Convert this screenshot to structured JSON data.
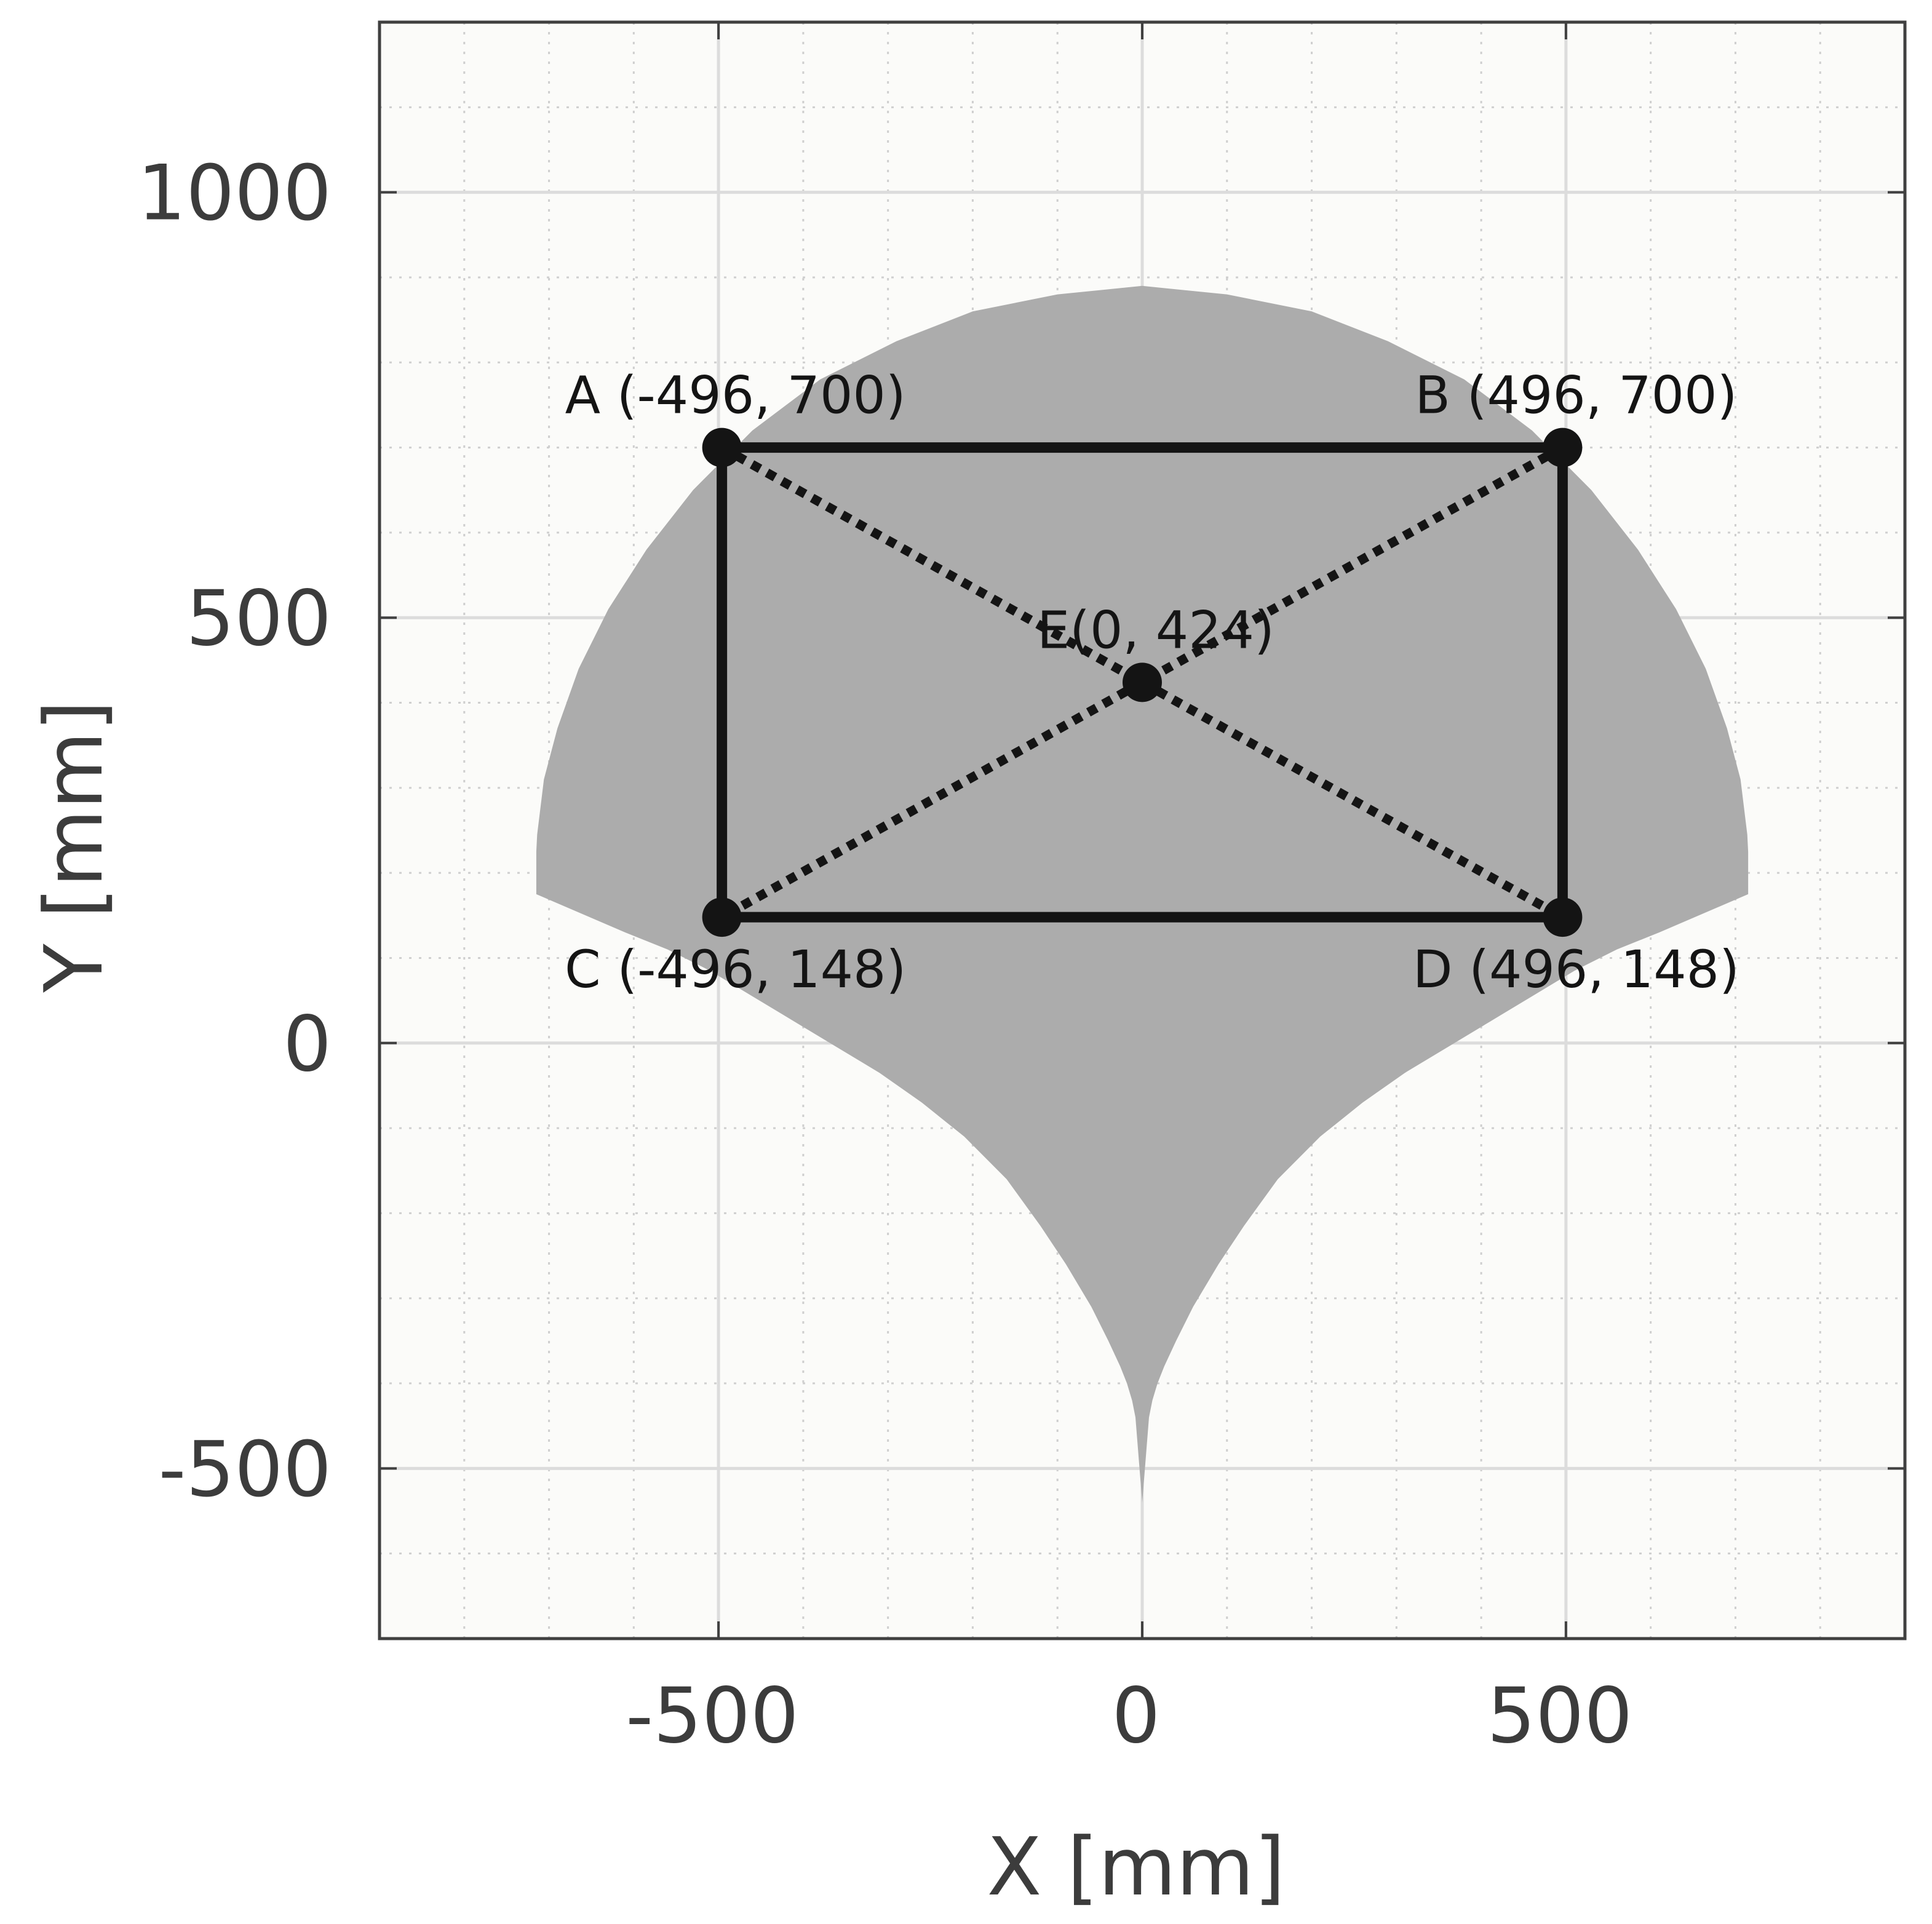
{
  "chart_data": {
    "type": "scatter",
    "title": "",
    "xlabel": "X [mm]",
    "ylabel": "Y [mm]",
    "xlim": [
      -900,
      900
    ],
    "ylim": [
      -700,
      1200
    ],
    "x_ticks": [
      -500,
      0,
      500
    ],
    "y_ticks": [
      -500,
      0,
      500,
      1000
    ],
    "x_tick_labels": [
      "-500",
      "0",
      "500"
    ],
    "y_tick_labels": [
      "-500",
      "0",
      "500",
      "1000"
    ],
    "grid": true,
    "minor_grid": true,
    "legend": "none",
    "colors": {
      "workspace": "#acacac",
      "rectangle": "#141414",
      "major_grid": "#dcdcdc",
      "minor_grid": "#cfcfcf",
      "plot_background": "#fbfbf9",
      "axes": "#404040"
    },
    "workspace_boundary": [
      [
        0,
        -540
      ],
      [
        8,
        -440
      ],
      [
        12,
        -420
      ],
      [
        18,
        -400
      ],
      [
        26,
        -380
      ],
      [
        40,
        -350
      ],
      [
        60,
        -310
      ],
      [
        90,
        -260
      ],
      [
        120,
        -215
      ],
      [
        160,
        -160
      ],
      [
        210,
        -110
      ],
      [
        260,
        -70
      ],
      [
        310,
        -35
      ],
      [
        360,
        -5
      ],
      [
        410,
        25
      ],
      [
        460,
        55
      ],
      [
        510,
        85
      ],
      [
        560,
        110
      ],
      [
        610,
        130
      ],
      [
        680,
        160
      ],
      [
        715,
        175
      ],
      [
        715,
        225
      ],
      [
        714,
        245
      ],
      [
        706,
        310
      ],
      [
        690,
        370
      ],
      [
        665,
        440
      ],
      [
        630,
        510
      ],
      [
        585,
        580
      ],
      [
        530,
        650
      ],
      [
        460,
        720
      ],
      [
        380,
        780
      ],
      [
        290,
        825
      ],
      [
        200,
        860
      ],
      [
        100,
        880
      ],
      [
        0,
        890
      ],
      [
        -100,
        880
      ],
      [
        -200,
        860
      ],
      [
        -290,
        825
      ],
      [
        -380,
        780
      ],
      [
        -460,
        720
      ],
      [
        -530,
        650
      ],
      [
        -585,
        580
      ],
      [
        -630,
        510
      ],
      [
        -665,
        440
      ],
      [
        -690,
        370
      ],
      [
        -706,
        310
      ],
      [
        -714,
        245
      ],
      [
        -715,
        225
      ],
      [
        -715,
        175
      ],
      [
        -680,
        160
      ],
      [
        -610,
        130
      ],
      [
        -560,
        110
      ],
      [
        -510,
        85
      ],
      [
        -460,
        55
      ],
      [
        -410,
        25
      ],
      [
        -360,
        -5
      ],
      [
        -310,
        -35
      ],
      [
        -260,
        -70
      ],
      [
        -210,
        -110
      ],
      [
        -160,
        -160
      ],
      [
        -120,
        -215
      ],
      [
        -90,
        -260
      ],
      [
        -60,
        -310
      ],
      [
        -40,
        -350
      ],
      [
        -26,
        -380
      ],
      [
        -18,
        -400
      ],
      [
        -12,
        -420
      ],
      [
        -8,
        -440
      ]
    ],
    "points": [
      {
        "id": "A",
        "label": "A (-496, 700)",
        "x": -496,
        "y": 700,
        "label_pos": "above"
      },
      {
        "id": "B",
        "label": "B (496, 700)",
        "x": 496,
        "y": 700,
        "label_pos": "above"
      },
      {
        "id": "C",
        "label": "C (-496, 148)",
        "x": -496,
        "y": 148,
        "label_pos": "below"
      },
      {
        "id": "D",
        "label": "D (496, 148)",
        "x": 496,
        "y": 148,
        "label_pos": "below"
      },
      {
        "id": "E",
        "label": "E(0, 424)",
        "x": 0,
        "y": 424,
        "label_pos": "above"
      }
    ],
    "rectangle": [
      "A",
      "B",
      "D",
      "C"
    ],
    "diagonals": [
      [
        "A",
        "D"
      ],
      [
        "B",
        "C"
      ]
    ]
  }
}
